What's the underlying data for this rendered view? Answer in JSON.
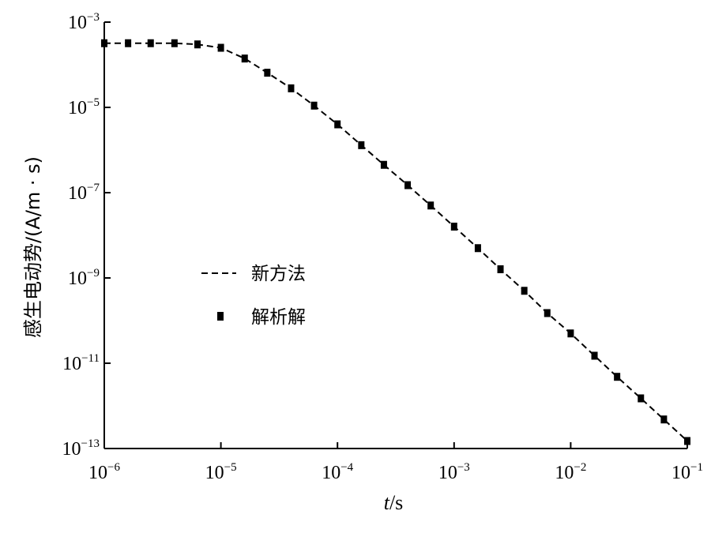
{
  "chart_data": {
    "type": "line",
    "xscale": "log",
    "yscale": "log",
    "xlim": [
      1e-06,
      0.1
    ],
    "ylim": [
      1e-13,
      0.001
    ],
    "xlabel": {
      "italic": "t",
      "rest": "/s"
    },
    "ylabel": "感生电动势/(A/m · s)",
    "x_ticks": [
      {
        "base": "10",
        "exp": "−6"
      },
      {
        "base": "10",
        "exp": "−5"
      },
      {
        "base": "10",
        "exp": "−4"
      },
      {
        "base": "10",
        "exp": "−3"
      },
      {
        "base": "10",
        "exp": "−2"
      },
      {
        "base": "10",
        "exp": "−1"
      }
    ],
    "y_ticks": [
      {
        "base": "10",
        "exp": "−13"
      },
      {
        "base": "10",
        "exp": "−11"
      },
      {
        "base": "10",
        "exp": "−9"
      },
      {
        "base": "10",
        "exp": "−7"
      },
      {
        "base": "10",
        "exp": "−5"
      },
      {
        "base": "10",
        "exp": "−3"
      }
    ],
    "grid": false,
    "legend_position": "center-left",
    "series": [
      {
        "name": "新方法",
        "style": "dashed-line",
        "color": "#000000",
        "x": [
          1e-06,
          1.6e-06,
          2.5e-06,
          4e-06,
          6.3e-06,
          1e-05,
          1.6e-05,
          2.5e-05,
          4e-05,
          6.3e-05,
          0.0001,
          0.00016,
          0.00025,
          0.0004,
          0.00063,
          0.001,
          0.0016,
          0.0025,
          0.004,
          0.0063,
          0.01,
          0.016,
          0.025,
          0.04,
          0.063,
          0.1
        ],
        "y": [
          0.00032,
          0.00032,
          0.00032,
          0.00032,
          0.0003,
          0.00025,
          0.00014,
          6.5e-05,
          2.8e-05,
          1.1e-05,
          4e-06,
          1.3e-06,
          4.5e-07,
          1.5e-07,
          5e-08,
          1.6e-08,
          5e-09,
          1.6e-09,
          5e-10,
          1.5e-10,
          5e-11,
          1.5e-11,
          4.8e-12,
          1.5e-12,
          4.8e-13,
          1.5e-13
        ]
      },
      {
        "name": "解析解",
        "style": "square-markers",
        "color": "#000000",
        "x": [
          1e-06,
          1.6e-06,
          2.5e-06,
          4e-06,
          6.3e-06,
          1e-05,
          1.6e-05,
          2.5e-05,
          4e-05,
          6.3e-05,
          0.0001,
          0.00016,
          0.00025,
          0.0004,
          0.00063,
          0.001,
          0.0016,
          0.0025,
          0.004,
          0.0063,
          0.01,
          0.016,
          0.025,
          0.04,
          0.063,
          0.1
        ],
        "y": [
          0.00032,
          0.00032,
          0.00032,
          0.00032,
          0.0003,
          0.00025,
          0.00014,
          6.5e-05,
          2.8e-05,
          1.1e-05,
          4e-06,
          1.3e-06,
          4.5e-07,
          1.5e-07,
          5e-08,
          1.6e-08,
          5e-09,
          1.6e-09,
          5e-10,
          1.5e-10,
          5e-11,
          1.5e-11,
          4.8e-12,
          1.5e-12,
          4.8e-13,
          1.5e-13
        ]
      }
    ]
  }
}
